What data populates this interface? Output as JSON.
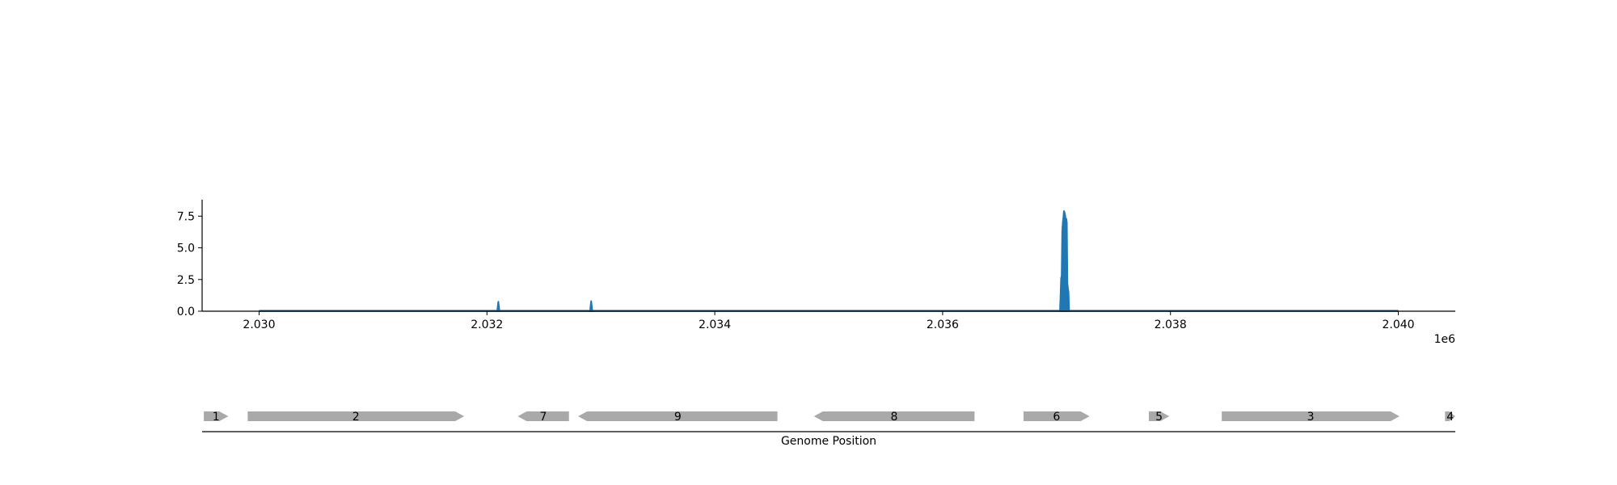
{
  "chart_data": [
    {
      "type": "area",
      "title": "",
      "xlabel": "",
      "ylabel": "",
      "xlim": [
        2029500,
        2040500
      ],
      "ylim": [
        0,
        8.8
      ],
      "x_offset_label": "1e6",
      "x_ticks": [
        {
          "value": 2030000,
          "label": "2.030"
        },
        {
          "value": 2032000,
          "label": "2.032"
        },
        {
          "value": 2034000,
          "label": "2.034"
        },
        {
          "value": 2036000,
          "label": "2.036"
        },
        {
          "value": 2038000,
          "label": "2.038"
        },
        {
          "value": 2040000,
          "label": "2.040"
        }
      ],
      "y_ticks": [
        {
          "value": 0,
          "label": "0.0"
        },
        {
          "value": 2.5,
          "label": "2.5"
        },
        {
          "value": 5,
          "label": "5.0"
        },
        {
          "value": 7.5,
          "label": "7.5"
        }
      ],
      "series_color": "#1f77b4",
      "x_range": [
        2030000,
        2040000
      ],
      "baseline": 0.02,
      "peaks": [
        {
          "x": [
            2032090,
            2032100,
            2032110
          ],
          "y": [
            0.0,
            0.75,
            0.0
          ]
        },
        {
          "x": [
            2032905,
            2032915,
            2032925
          ],
          "y": [
            0.0,
            0.8,
            0.0
          ]
        },
        {
          "x": [
            2037030,
            2037035,
            2037040,
            2037045,
            2037050,
            2037055,
            2037060,
            2037065,
            2037070,
            2037075,
            2037080,
            2037085,
            2037090,
            2037095,
            2037100,
            2037105,
            2037110
          ],
          "y": [
            0.0,
            1.2,
            2.6,
            2.8,
            6.3,
            7.0,
            7.4,
            7.9,
            7.8,
            7.6,
            7.2,
            7.3,
            7.0,
            2.2,
            1.8,
            1.5,
            0.0
          ]
        }
      ]
    },
    {
      "type": "gene-track",
      "xlabel": "Genome Position",
      "xlim": [
        2029500,
        2040500
      ],
      "feature_color": "#a9a9a9",
      "features": [
        {
          "label": "1",
          "start": 2029515,
          "end": 2029730,
          "strand": "+"
        },
        {
          "label": "2",
          "start": 2029900,
          "end": 2031800,
          "strand": "+"
        },
        {
          "label": "7",
          "start": 2032270,
          "end": 2032720,
          "strand": "-"
        },
        {
          "label": "9",
          "start": 2032800,
          "end": 2034550,
          "strand": "-"
        },
        {
          "label": "8",
          "start": 2034870,
          "end": 2036280,
          "strand": "-"
        },
        {
          "label": "6",
          "start": 2036710,
          "end": 2037290,
          "strand": "+"
        },
        {
          "label": "5",
          "start": 2037810,
          "end": 2037990,
          "strand": "+"
        },
        {
          "label": "3",
          "start": 2038450,
          "end": 2040010,
          "strand": "+"
        },
        {
          "label": "4",
          "start": 2040410,
          "end": 2040500,
          "strand": "+"
        }
      ]
    }
  ]
}
